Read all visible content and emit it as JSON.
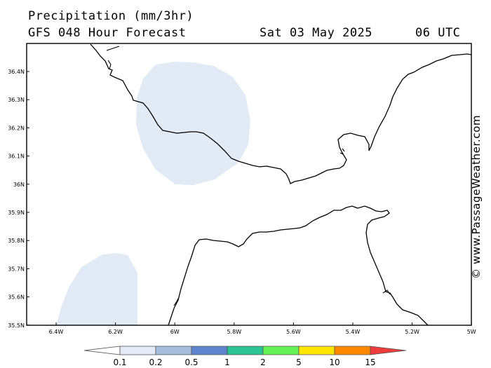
{
  "header": {
    "title": "Precipitation (mm/3hr)",
    "model": "GFS 048 Hour Forecast",
    "date": "Sat 03 May 2025",
    "time": "06 UTC"
  },
  "credit": "© www.PassageWeather.com",
  "axes": {
    "lat_labels": [
      "36.4N",
      "36.3N",
      "36.2N",
      "36.1N",
      "36N",
      "35.9N",
      "35.8N",
      "35.7N",
      "35.6N",
      "35.5N"
    ],
    "lon_labels": [
      "6.4W",
      "6.2W",
      "6W",
      "5.8W",
      "5.6W",
      "5.4W",
      "5.2W",
      "5W"
    ]
  },
  "legend": {
    "labels": [
      "0.1",
      "0.2",
      "0.5",
      "1",
      "2",
      "5",
      "10",
      "15"
    ],
    "colors": [
      "#ffffff",
      "#e4ebf6",
      "#a7bedf",
      "#5e84cf",
      "#2bc393",
      "#66f35a",
      "#ffe600",
      "#ff8800",
      "#ee3b3b"
    ]
  },
  "precip_color": "#e2eaf5"
}
